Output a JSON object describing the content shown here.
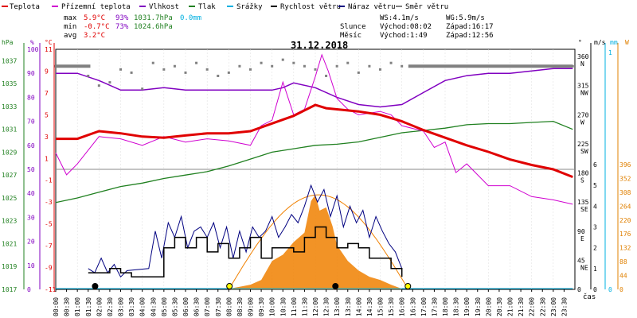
{
  "chart_data": {
    "type": "line",
    "title": "31.12.2018",
    "xlabel": "čas",
    "x_ticks": [
      "00:00",
      "00:30",
      "01:00",
      "01:30",
      "02:00",
      "02:30",
      "03:00",
      "03:30",
      "04:00",
      "04:30",
      "05:00",
      "05:30",
      "06:00",
      "06:30",
      "07:00",
      "07:30",
      "08:00",
      "08:30",
      "09:00",
      "09:30",
      "10:00",
      "10:30",
      "11:00",
      "11:30",
      "12:00",
      "12:30",
      "13:00",
      "13:30",
      "14:00",
      "14:30",
      "15:00",
      "15:30",
      "16:00",
      "16:30",
      "17:00",
      "17:30",
      "18:00",
      "18:30",
      "19:00",
      "19:30",
      "20:00",
      "20:30",
      "21:00",
      "21:30",
      "22:00",
      "22:30",
      "23:00",
      "23:30"
    ],
    "x_ticks_display": [
      "00:00",
      "00:30",
      "01:00",
      "01:30",
      "02:00",
      "02:30",
      "03:00",
      "03:30",
      "04:00",
      "04:30",
      "05:00",
      "05:30",
      "06:00",
      "06:30",
      "07:00",
      "07:30",
      "08:00",
      "08:30",
      "09:00",
      "09:30",
      "10:00",
      "10:30",
      "11:00",
      "11:30",
      "12:00",
      "12:30",
      "13:00",
      "13:30",
      "14:00",
      "14:30",
      "15:00",
      "15:30",
      "16:00",
      "16:30",
      "17:00",
      "17:30",
      "18:00",
      "18:30",
      "19:00",
      "19:30",
      "20:00",
      "20:30",
      "21:00",
      "21:30",
      "22:00",
      "22:30",
      "23:00",
      "23:30"
    ],
    "legend": [
      {
        "name": "Teplota",
        "color": "#e00000"
      },
      {
        "name": "Přízemní teplota",
        "color": "#d000d0"
      },
      {
        "name": "Vlhkost",
        "color": "#8000c0"
      },
      {
        "name": "Tlak",
        "color": "#208020"
      },
      {
        "name": "Srážky",
        "color": "#00b0e0"
      },
      {
        "name": "Rychlost větru",
        "color": "#000000"
      },
      {
        "name": "Náraz větru",
        "color": "#000080"
      },
      {
        "name": "Směr větru",
        "color": "#808080"
      }
    ],
    "stats": {
      "max_label": "max",
      "min_label": "min",
      "avg_label": "avg",
      "max_temp": "5.9°C",
      "max_hum": "93%",
      "max_press": "1031.7hPa",
      "max_rain": "0.0mm",
      "min_temp": "-0.7°C",
      "min_hum": "73%",
      "min_press": "1024.6hPa",
      "avg_temp": "3.2°C",
      "ws": "WS:4.1m/s",
      "wg": "WG:5.9m/s",
      "sun_label": "Slunce",
      "sun_rise": "Východ:08:02",
      "sun_set": "Západ:16:17",
      "moon_label": "Měsíc",
      "moon_rise": "Východ:1:49",
      "moon_set": "Západ:12:56"
    },
    "axes": {
      "press_unit": "hPa",
      "hum_unit": "%",
      "temp_unit": "°C",
      "dir_unit": "°",
      "wind_unit": "m/s",
      "rain_unit": "mm",
      "solar_unit": "W",
      "press_ticks": [
        "1037",
        "1035",
        "1033",
        "1031",
        "1029",
        "1027",
        "1025",
        "1023",
        "1021",
        "1019",
        "1017"
      ],
      "hum_ticks": [
        "100",
        "90",
        "80",
        "70",
        "60",
        "50",
        "40",
        "30",
        "20",
        "10",
        "0"
      ],
      "temp_ticks": [
        "11",
        "9",
        "7",
        "5",
        "3",
        "1",
        "-1",
        "-3",
        "-5",
        "-7",
        "-9",
        "-11"
      ],
      "dir_ticks": [
        {
          "deg": "360",
          "lab": "N"
        },
        {
          "deg": "315",
          "lab": "NW"
        },
        {
          "deg": "270",
          "lab": "W"
        },
        {
          "deg": "225",
          "lab": "SW"
        },
        {
          "deg": "180",
          "lab": "S"
        },
        {
          "deg": "135",
          "lab": "SE"
        },
        {
          "deg": "90",
          "lab": "E"
        },
        {
          "deg": "45",
          "lab": "NE"
        },
        {
          "deg": "0",
          "lab": ""
        }
      ],
      "wind_ticks": [
        "6",
        "5",
        "4",
        "3",
        "2",
        "1",
        "0"
      ],
      "rain_ticks": [
        "1",
        "0"
      ],
      "solar_ticks": [
        "396",
        "352",
        "308",
        "264",
        "220",
        "176",
        "132",
        "88",
        "44",
        "0"
      ]
    },
    "ranges": {
      "temp": [
        -11,
        11
      ],
      "pressure": [
        1017,
        1038
      ],
      "humidity": [
        0,
        100
      ],
      "wind": [
        0,
        6
      ],
      "direction": [
        0,
        360
      ],
      "solar": [
        0,
        396
      ]
    },
    "series": [
      {
        "name": "Teplota",
        "unit": "°C",
        "x": [
          0,
          1,
          2,
          3,
          4,
          5,
          6,
          7,
          8,
          9,
          10,
          11,
          12,
          12.5,
          13,
          14,
          15,
          16,
          17,
          18,
          19,
          20,
          21,
          22,
          23,
          23.9
        ],
        "values": [
          2.8,
          2.8,
          3.5,
          3.3,
          3.0,
          2.9,
          3.1,
          3.3,
          3.3,
          3.5,
          4.2,
          4.9,
          5.9,
          5.6,
          5.5,
          5.3,
          5.0,
          4.4,
          3.6,
          2.9,
          2.2,
          1.6,
          0.9,
          0.4,
          0.0,
          -0.7
        ]
      },
      {
        "name": "Přízemní teplota",
        "unit": "°C",
        "x": [
          0,
          0.5,
          1,
          2,
          3,
          4,
          5,
          6,
          7,
          8,
          9,
          9.5,
          10,
          10.5,
          11,
          11.5,
          12,
          12.3,
          12.6,
          13,
          13.5,
          14,
          15,
          15.5,
          16,
          17,
          17.5,
          18,
          18.5,
          19,
          20,
          21,
          22,
          23,
          23.9
        ],
        "values": [
          1.5,
          -0.5,
          0.5,
          3,
          2.8,
          2.2,
          3,
          2.5,
          2.8,
          2.6,
          2.2,
          4,
          4.5,
          8,
          5,
          5.5,
          8.5,
          10.5,
          9,
          6.5,
          5.5,
          5,
          5.3,
          5,
          4,
          3.5,
          2,
          2.5,
          -0.3,
          0.5,
          -1.5,
          -1.5,
          -2.5,
          -2.8,
          -3.2
        ]
      },
      {
        "name": "Vlhkost",
        "unit": "%",
        "x": [
          0,
          1,
          2,
          3,
          4,
          5,
          6,
          7,
          8,
          9,
          10,
          10.5,
          11,
          12,
          13,
          14,
          15,
          16,
          17,
          18,
          19,
          20,
          21,
          22,
          23,
          23.9
        ],
        "values": [
          90,
          90,
          87,
          83,
          83,
          84,
          83,
          83,
          83,
          83,
          83,
          84,
          86,
          84,
          80,
          77,
          76,
          77,
          82,
          87,
          89,
          90,
          90,
          91,
          92,
          92
        ]
      },
      {
        "name": "Tlak",
        "unit": "hPa",
        "x": [
          0,
          1,
          2,
          3,
          4,
          5,
          6,
          7,
          8,
          9,
          10,
          11,
          12,
          13,
          14,
          15,
          16,
          17,
          18,
          19,
          20,
          21,
          22,
          23,
          23.9
        ],
        "values": [
          1024.6,
          1025.0,
          1025.5,
          1026.0,
          1026.3,
          1026.7,
          1027.0,
          1027.3,
          1027.8,
          1028.4,
          1029.0,
          1029.3,
          1029.6,
          1029.7,
          1029.9,
          1030.3,
          1030.7,
          1030.9,
          1031.1,
          1031.4,
          1031.5,
          1031.5,
          1031.6,
          1031.7,
          1031.0
        ]
      },
      {
        "name": "Srážky",
        "unit": "mm",
        "x": [
          0,
          23.9
        ],
        "values": [
          0,
          0
        ]
      },
      {
        "name": "Rychlost větru",
        "unit": "m/s",
        "x": [
          1.5,
          2,
          2.5,
          3,
          3.5,
          4,
          4.5,
          5,
          5.5,
          6,
          6.5,
          7,
          7.5,
          8,
          8.5,
          9,
          9.5,
          10,
          10.5,
          11,
          11.5,
          12,
          12.5,
          13,
          13.5,
          14,
          14.5,
          15,
          15.5,
          16
        ],
        "values": [
          0.8,
          0.8,
          1.0,
          0.8,
          0.6,
          0.6,
          0.6,
          2.0,
          2.5,
          2.0,
          2.5,
          1.8,
          2.2,
          1.5,
          2.0,
          2.5,
          1.5,
          2.0,
          2.0,
          1.8,
          2.5,
          3.0,
          2.5,
          2.0,
          2.2,
          2.0,
          1.5,
          1.5,
          1.0,
          0.6
        ]
      },
      {
        "name": "Náraz větru",
        "unit": "m/s",
        "x": [
          1.5,
          1.8,
          2.1,
          2.4,
          2.7,
          3,
          3.3,
          4.3,
          4.6,
          4.9,
          5.2,
          5.5,
          5.8,
          6.1,
          6.4,
          6.7,
          7,
          7.3,
          7.6,
          7.9,
          8.2,
          8.5,
          8.8,
          9.1,
          9.4,
          9.7,
          10,
          10.3,
          10.6,
          10.9,
          11.2,
          11.5,
          11.8,
          12.1,
          12.4,
          12.7,
          13,
          13.3,
          13.6,
          13.9,
          14.2,
          14.5,
          14.8,
          15.1,
          15.4,
          15.7,
          16
        ],
        "values": [
          1.0,
          0.8,
          1.5,
          0.8,
          1.2,
          0.6,
          0.9,
          1.0,
          2.8,
          1.5,
          3.2,
          2.5,
          3.5,
          2.0,
          2.8,
          3.0,
          2.5,
          3.2,
          2.0,
          3.0,
          1.5,
          2.8,
          1.8,
          3.0,
          2.5,
          2.8,
          3.5,
          2.5,
          3.0,
          3.6,
          3.2,
          4.0,
          5.0,
          4.2,
          4.8,
          3.5,
          4.5,
          3.0,
          4.0,
          3.2,
          3.8,
          2.5,
          3.5,
          2.8,
          2.2,
          1.8,
          1.0
        ]
      },
      {
        "name": "Směr větru",
        "unit": "°",
        "x": [
          0,
          1.5,
          2,
          2.5,
          3,
          3.5,
          4,
          4.5,
          5,
          5.5,
          6,
          6.5,
          7,
          7.5,
          8,
          8.5,
          9,
          9.5,
          10,
          10.5,
          11,
          11.5,
          12,
          12.5,
          13,
          13.5,
          14,
          14.5,
          15,
          15.5,
          16,
          17,
          18,
          19,
          20,
          21,
          22,
          23,
          23.9
        ],
        "values": [
          345,
          330,
          315,
          320,
          340,
          335,
          310,
          350,
          340,
          345,
          335,
          350,
          340,
          330,
          335,
          345,
          340,
          350,
          345,
          355,
          350,
          345,
          340,
          330,
          345,
          350,
          335,
          345,
          340,
          350,
          345,
          345,
          345,
          345,
          345,
          345,
          345,
          345,
          345
        ]
      },
      {
        "name": "Sluneční svit",
        "unit": "W",
        "x": [
          8,
          8.5,
          9,
          9.5,
          10,
          10.5,
          11,
          11.5,
          11.8,
          12,
          12.2,
          12.5,
          12.8,
          13,
          13.5,
          14,
          14.5,
          15,
          15.5,
          16
        ],
        "values": [
          2,
          8,
          15,
          30,
          90,
          110,
          150,
          180,
          280,
          300,
          250,
          260,
          200,
          140,
          90,
          60,
          40,
          30,
          15,
          2
        ]
      }
    ]
  }
}
